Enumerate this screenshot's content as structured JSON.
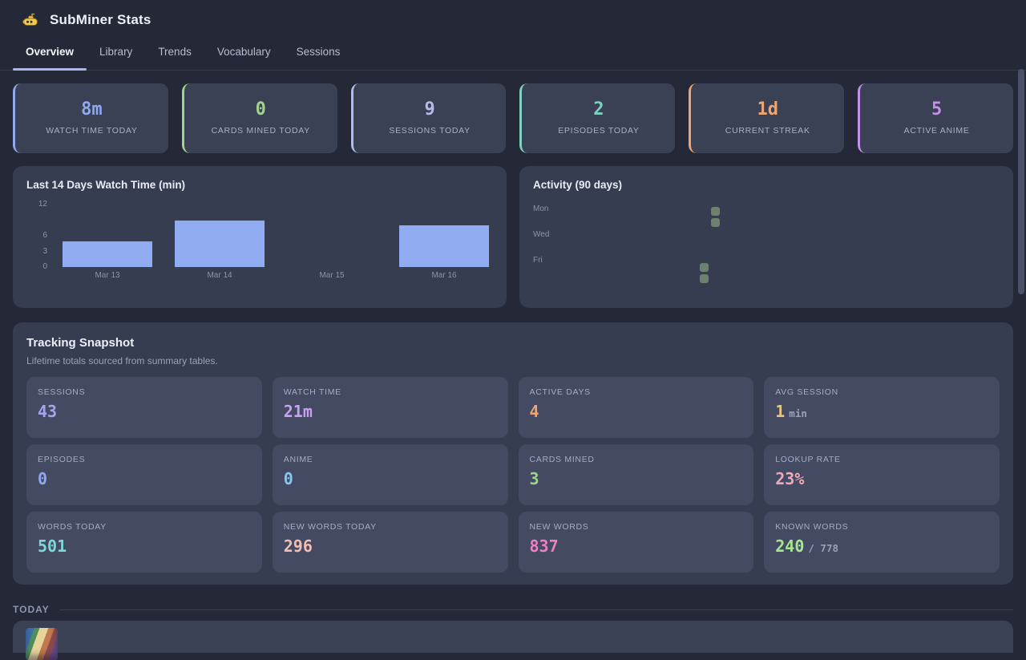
{
  "theme": {
    "accent": "#a9b5ee",
    "background": "#242837",
    "card": "#3a4154",
    "panel": "#363d50",
    "tile": "#434a61"
  },
  "app": {
    "title": "SubMiner Stats",
    "logo_icon": "submarine-icon"
  },
  "tabs": [
    {
      "label": "Overview",
      "active": true
    },
    {
      "label": "Library",
      "active": false
    },
    {
      "label": "Trends",
      "active": false
    },
    {
      "label": "Vocabulary",
      "active": false
    },
    {
      "label": "Sessions",
      "active": false
    }
  ],
  "stat_cards": [
    {
      "label": "WATCH TIME TODAY",
      "value": "8m",
      "color": "#8fa8f0"
    },
    {
      "label": "CARDS MINED TODAY",
      "value": "0",
      "color": "#9fd48c"
    },
    {
      "label": "SESSIONS TODAY",
      "value": "9",
      "color": "#b3bce8"
    },
    {
      "label": "EPISODES TODAY",
      "value": "2",
      "color": "#7fd0c0"
    },
    {
      "label": "CURRENT STREAK",
      "value": "1d",
      "color": "#f0a470"
    },
    {
      "label": "ACTIVE ANIME",
      "value": "5",
      "color": "#c490e8"
    }
  ],
  "chart_data": {
    "type": "bar",
    "title": "Last 14 Days Watch Time (min)",
    "categories": [
      "Mar 13",
      "Mar 14",
      "Mar 15",
      "Mar 16"
    ],
    "values": [
      5,
      9,
      0,
      8
    ],
    "xlabel": "",
    "ylabel": "",
    "ylim": [
      0,
      12
    ],
    "yticks": [
      0,
      3,
      6,
      12
    ],
    "bar_color": "#91acf0",
    "grid": false,
    "legend": false
  },
  "activity": {
    "title": "Activity (90 days)",
    "row_labels": [
      "Mon",
      "Wed",
      "Fri"
    ],
    "weeks": 14,
    "days_per_week": 7,
    "cell_color": "#6d8170",
    "active_cells": [
      {
        "week": 12,
        "day": 5
      },
      {
        "week": 12,
        "day": 6
      },
      {
        "week": 13,
        "day": 0
      },
      {
        "week": 13,
        "day": 1
      }
    ]
  },
  "snapshot": {
    "title": "Tracking Snapshot",
    "subtitle": "Lifetime totals sourced from summary tables.",
    "tiles": [
      {
        "label": "SESSIONS",
        "value": "43",
        "unit": "",
        "color": "#a9a3ef"
      },
      {
        "label": "WATCH TIME",
        "value": "21m",
        "unit": "",
        "color": "#c9a0f2"
      },
      {
        "label": "ACTIVE DAYS",
        "value": "4",
        "unit": "",
        "color": "#f0a470"
      },
      {
        "label": "AVG SESSION",
        "value": "1",
        "unit": "min",
        "color": "#e8c673"
      },
      {
        "label": "EPISODES",
        "value": "0",
        "unit": "",
        "color": "#8fa8f0"
      },
      {
        "label": "ANIME",
        "value": "0",
        "unit": "",
        "color": "#85c6f2"
      },
      {
        "label": "CARDS MINED",
        "value": "3",
        "unit": "",
        "color": "#9fd48c"
      },
      {
        "label": "LOOKUP RATE",
        "value": "23%",
        "unit": "",
        "color": "#f0a9b8"
      },
      {
        "label": "WORDS TODAY",
        "value": "501",
        "unit": "",
        "color": "#7fd6d6"
      },
      {
        "label": "NEW WORDS TODAY",
        "value": "296",
        "unit": "",
        "color": "#f2beb2"
      },
      {
        "label": "NEW WORDS",
        "value": "837",
        "unit": "",
        "color": "#ef7fc3"
      },
      {
        "label": "KNOWN WORDS",
        "value": "240",
        "unit": "/ 778",
        "color": "#a5e68f"
      }
    ]
  },
  "today": {
    "label": "TODAY"
  }
}
